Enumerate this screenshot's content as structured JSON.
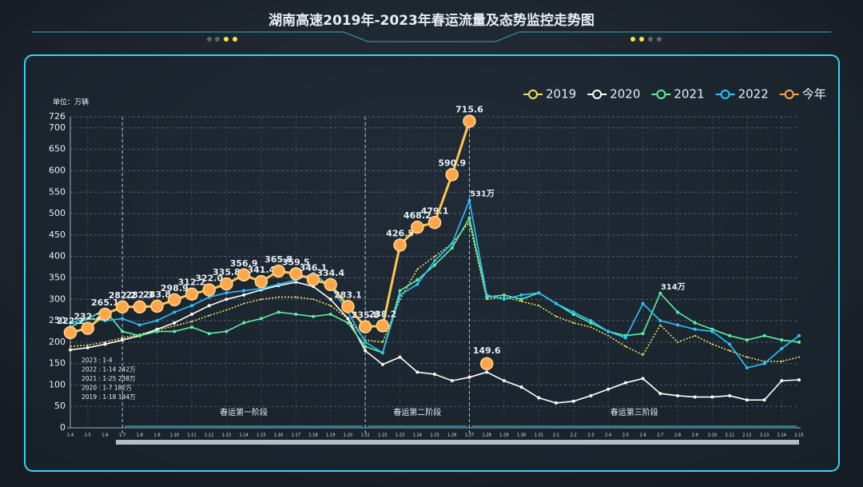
{
  "chart_data": {
    "type": "line",
    "title": "湖南高速2019年-2023年春运流量及态势监控走势图",
    "unit": "单位：万辆",
    "categories": [
      "1-4",
      "1-5",
      "1-6",
      "1-7",
      "1-8",
      "1-9",
      "1-10",
      "1-11",
      "1-12",
      "1-13",
      "1-14",
      "1-15",
      "1-16",
      "1-17",
      "1-18",
      "1-19",
      "1-20",
      "1-21",
      "1-22",
      "1-23",
      "1-24",
      "1-25",
      "1-26",
      "1-27",
      "1-28",
      "1-29",
      "1-30",
      "1-31",
      "2-1",
      "2-2",
      "2-3",
      "2-4",
      "2-5",
      "2-6",
      "2-7",
      "2-8",
      "2-9",
      "2-10",
      "2-11",
      "2-12",
      "2-13",
      "2-14",
      "2-15"
    ],
    "series": [
      {
        "name": "2019",
        "color": "#f2e35c",
        "dashed": true,
        "values": [
          190,
          193,
          200,
          210,
          218,
          228,
          238,
          248,
          262,
          275,
          290,
          300,
          305,
          305,
          300,
          285,
          255,
          205,
          200,
          300,
          370,
          400,
          430,
          480,
          300,
          305,
          295,
          285,
          260,
          245,
          235,
          215,
          190,
          170,
          240,
          200,
          215,
          195,
          180,
          165,
          155,
          155,
          165
        ]
      },
      {
        "name": "2020",
        "color": "#ffffff",
        "values": [
          182,
          187,
          195,
          205,
          215,
          230,
          245,
          265,
          285,
          300,
          310,
          322,
          332,
          340,
          330,
          300,
          255,
          180,
          148,
          165,
          130,
          125,
          110,
          118,
          130,
          110,
          95,
          70,
          58,
          62,
          75,
          90,
          105,
          115,
          80,
          75,
          72,
          72,
          75,
          65,
          65,
          110,
          112
        ]
      },
      {
        "name": "2021",
        "color": "#5ef0a0",
        "values": [
          235,
          255,
          275,
          225,
          215,
          225,
          225,
          235,
          220,
          225,
          245,
          255,
          270,
          265,
          260,
          265,
          245,
          190,
          175,
          320,
          345,
          380,
          420,
          490,
          305,
          310,
          300,
          315,
          290,
          265,
          245,
          225,
          215,
          220,
          314,
          270,
          245,
          230,
          215,
          205,
          215,
          205,
          200
        ],
        "value_labels": [
          null,
          null,
          null,
          null,
          null,
          null,
          null,
          null,
          null,
          null,
          null,
          null,
          null,
          null,
          null,
          null,
          null,
          null,
          null,
          null,
          null,
          null,
          null,
          null,
          null,
          null,
          null,
          null,
          null,
          null,
          null,
          null,
          null,
          null,
          "314万",
          null,
          null,
          null,
          null,
          null,
          null,
          null,
          null
        ]
      },
      {
        "name": "2022",
        "color": "#29c4ff",
        "values": [
          245,
          255,
          250,
          255,
          240,
          250,
          270,
          285,
          305,
          315,
          320,
          325,
          335,
          345,
          360,
          330,
          270,
          200,
          175,
          310,
          335,
          390,
          430,
          531,
          310,
          300,
          310,
          315,
          290,
          270,
          250,
          225,
          210,
          290,
          250,
          240,
          230,
          225,
          195,
          140,
          150,
          185,
          215
        ],
        "value_labels": [
          null,
          null,
          null,
          null,
          null,
          null,
          null,
          null,
          null,
          null,
          null,
          null,
          null,
          null,
          null,
          null,
          null,
          null,
          null,
          null,
          null,
          null,
          null,
          "531万",
          null,
          null,
          null,
          null,
          null,
          null,
          null,
          null,
          null,
          null,
          null,
          null,
          null,
          null,
          null,
          null,
          null,
          null,
          null
        ]
      },
      {
        "name": "今年",
        "color": "#ffa64d",
        "highlight": true,
        "values": [
          222.2,
          232.2,
          265.1,
          282.2,
          282.3,
          283.8,
          298.9,
          312.2,
          322.0,
          335.8,
          356.9,
          341.4,
          365.8,
          359.5,
          346.1,
          334.4,
          283.1,
          235.8,
          238.2,
          426.5,
          468.2,
          479.1,
          590.9,
          715.6,
          null,
          null,
          null,
          null,
          null,
          null,
          null,
          null,
          null,
          null,
          null,
          null,
          null,
          null,
          null,
          null,
          null,
          null,
          null
        ],
        "value_labels": [
          "222.2",
          "232.2",
          "265.1",
          "282.2",
          "282.3",
          "283.8",
          "298.9",
          "312.2",
          "322.0",
          "335.8",
          "356.9",
          "341.4",
          "365.8",
          "359.5",
          "346.1",
          "334.4",
          "283.1",
          "235.8",
          "238.2",
          "426.5",
          "468.2",
          "479.1",
          "590.9",
          "715.6",
          null,
          null,
          null,
          null,
          null,
          null,
          null,
          null,
          null,
          null,
          null,
          null,
          null,
          null,
          null,
          null,
          null,
          null,
          null
        ]
      }
    ],
    "annotations": [
      {
        "category": "1-28",
        "value": 149.6
      }
    ],
    "stages": [
      {
        "label": "春运第一阶段",
        "start": "1-7",
        "end": "1-21"
      },
      {
        "label": "春运第二阶段",
        "start": "1-21",
        "end": "1-27"
      },
      {
        "label": "春运第三阶段",
        "start": "1-27",
        "end": "2-15"
      }
    ],
    "notes": [
      "2023 : 1-4",
      "2022 : 1-14 242万",
      "2021 : 1-25 238万",
      "2020 : 1-7 182万",
      "2019 : 1-18 194万"
    ],
    "ylim": [
      0,
      726
    ],
    "yticks": [
      0,
      50,
      100,
      150,
      200,
      250,
      300,
      350,
      400,
      450,
      500,
      550,
      600,
      650,
      700,
      726
    ],
    "grid": true
  }
}
